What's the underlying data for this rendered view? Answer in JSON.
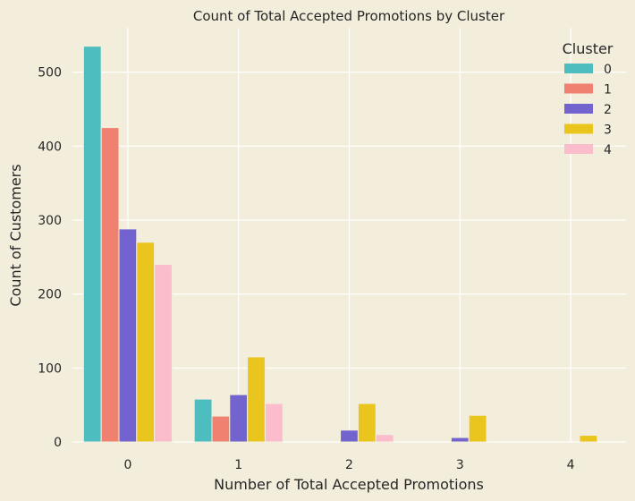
{
  "chart_data": {
    "type": "bar",
    "title": "Count of Total Accepted Promotions by Cluster",
    "xlabel": "Number of Total Accepted Promotions",
    "ylabel": "Count of Customers",
    "categories": [
      "0",
      "1",
      "2",
      "3",
      "4"
    ],
    "ylim": [
      0,
      560
    ],
    "yticks": [
      0,
      100,
      200,
      300,
      400,
      500
    ],
    "grid": true,
    "legend": {
      "title": "Cluster",
      "placement": "top-right"
    },
    "series": [
      {
        "name": "0",
        "color": "#4ebdbf",
        "values": [
          535,
          58,
          0,
          0,
          0
        ]
      },
      {
        "name": "1",
        "color": "#f08070",
        "values": [
          425,
          35,
          0,
          0,
          0
        ]
      },
      {
        "name": "2",
        "color": "#7263ce",
        "values": [
          288,
          64,
          16,
          6,
          0
        ]
      },
      {
        "name": "3",
        "color": "#e9c51d",
        "values": [
          270,
          115,
          52,
          36,
          9
        ]
      },
      {
        "name": "4",
        "color": "#fbbdcc",
        "values": [
          240,
          52,
          10,
          0,
          0
        ]
      }
    ]
  },
  "colors": {
    "background": "#f3eedb",
    "grid": "#ffffff"
  }
}
